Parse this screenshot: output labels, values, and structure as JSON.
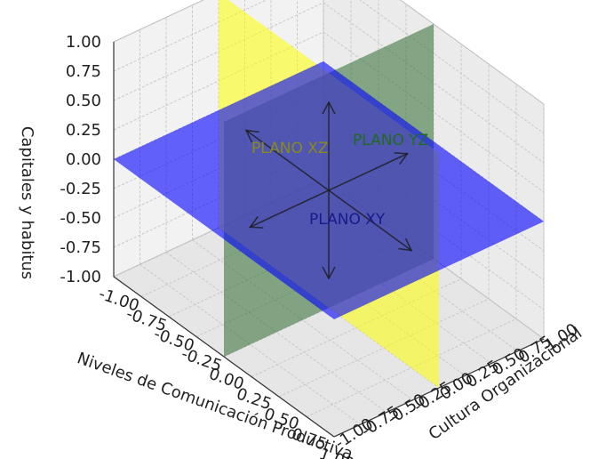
{
  "chart_data": {
    "type": "3d-planes",
    "xlabel": "Niveles de Comunicación Productiva",
    "ylabel": "Cultura Organizacional",
    "zlabel": "Capitales y habitus",
    "xlim": [
      -1.0,
      1.0
    ],
    "ylim": [
      -1.0,
      1.0
    ],
    "zlim": [
      -1.0,
      1.0
    ],
    "x_ticks": [
      "-1.00",
      "-0.75",
      "-0.50",
      "-0.25",
      "0.00",
      "0.25",
      "0.50",
      "0.75",
      "1.00"
    ],
    "y_ticks": [
      "-1.00",
      "-0.75",
      "-0.50",
      "-0.25",
      "0.00",
      "0.25",
      "0.50",
      "0.75",
      "1.00"
    ],
    "z_ticks": [
      "-1.00",
      "-0.75",
      "-0.50",
      "-0.25",
      "0.00",
      "0.25",
      "0.50",
      "0.75",
      "1.00"
    ],
    "grid": true,
    "planes": [
      {
        "label": "PLANO XY",
        "orientation": "z=0",
        "color": "#0000ff",
        "label_color": "#1a1a8a"
      },
      {
        "label": "PLANO XZ",
        "orientation": "y=0",
        "color": "#ffff00",
        "label_color": "#8a8a1a"
      },
      {
        "label": "PLANO YZ",
        "orientation": "x=0",
        "color": "#2e6b2e",
        "label_color": "#1f6b1f"
      }
    ],
    "arrows": "bidirectional along x, y and z axes through origin"
  }
}
